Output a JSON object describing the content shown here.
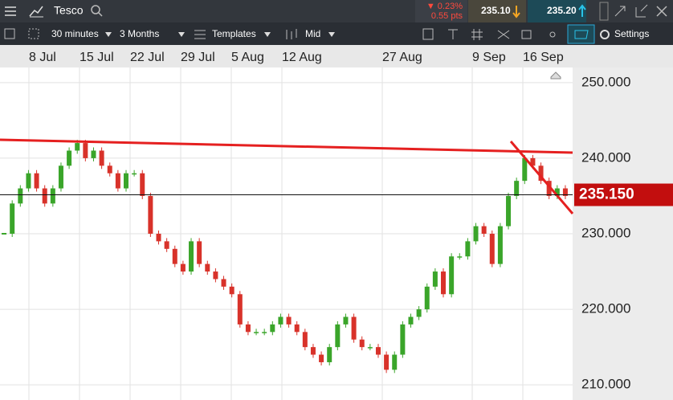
{
  "toolbar": {
    "instrument": "Tesco",
    "change_pct": "▼ 0.23%",
    "change_pts": "0.55 pts",
    "sell": "235.10",
    "buy": "235.20",
    "interval": "30 minutes",
    "range": "3 Months",
    "templates": "Templates",
    "price_type": "Mid",
    "settings": "Settings"
  },
  "chart": {
    "type": "candlestick",
    "x_labels": [
      "8 Jul",
      "15 Jul",
      "22 Jul",
      "29 Jul",
      "5 Aug",
      "12 Aug",
      "27 Aug",
      "9 Sep",
      "16 Sep"
    ],
    "ylim": [
      208,
      252
    ],
    "yticks": [
      {
        "value": 250,
        "label": "250.000"
      },
      {
        "value": 240,
        "label": "240.000"
      },
      {
        "value": 230,
        "label": "230.000"
      },
      {
        "value": 220,
        "label": "220.000"
      },
      {
        "value": 210,
        "label": "210.000"
      }
    ],
    "closes": [
      230,
      234,
      236,
      238,
      236,
      234,
      236,
      239,
      241,
      242,
      240,
      241,
      239,
      238,
      236,
      238,
      238,
      235,
      230,
      229,
      228,
      226,
      225,
      229,
      226,
      225,
      224,
      223,
      222,
      218,
      217,
      217,
      217,
      218,
      219,
      218,
      217,
      215,
      214,
      213,
      215,
      218,
      219,
      216,
      215,
      215,
      214,
      212,
      214,
      218,
      219,
      220,
      223,
      225,
      222,
      227,
      227,
      229,
      231,
      230,
      226,
      231,
      235,
      237,
      240,
      239,
      237,
      235,
      236,
      235
    ],
    "current_price": {
      "value": 235.15,
      "label": "235.150"
    }
  }
}
